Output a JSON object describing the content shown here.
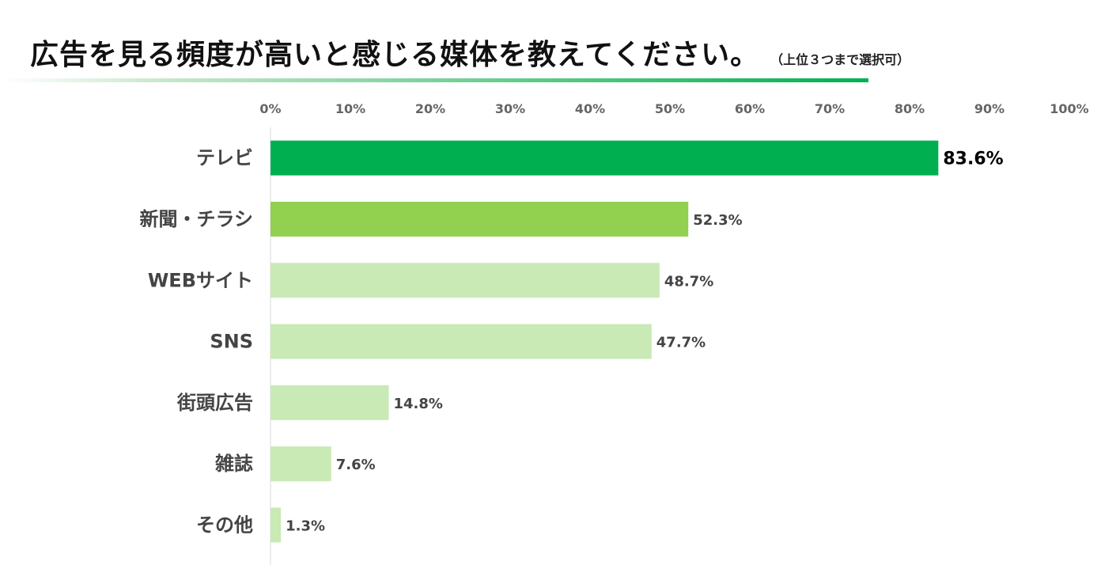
{
  "title": "広告を見る頻度が高いと感じる媒体を教えてください。",
  "subtitle": "（上位３つまで選択可）",
  "chart_data": {
    "type": "bar",
    "orientation": "horizontal",
    "title": "広告を見る頻度が高いと感じる媒体を教えてください。",
    "subtitle": "（上位３つまで選択可）",
    "categories": [
      "テレビ",
      "新聞・チラシ",
      "WEBサイト",
      "SNS",
      "街頭広告",
      "雑誌",
      "その他"
    ],
    "values": [
      83.6,
      52.3,
      48.7,
      47.7,
      14.8,
      7.6,
      1.3
    ],
    "value_labels": [
      "83.6%",
      "52.3%",
      "48.7%",
      "47.7%",
      "14.8%",
      "7.6%",
      "1.3%"
    ],
    "xlim": [
      0,
      100
    ],
    "ticks": [
      "0%",
      "10%",
      "20%",
      "30%",
      "40%",
      "50%",
      "60%",
      "70%",
      "80%",
      "90%",
      "100%"
    ],
    "xlabel": "",
    "ylabel": "",
    "axis_position": "top",
    "colors": [
      "#00b050",
      "#92d050",
      "#c9e9b5",
      "#c9e9b5",
      "#c9e9b5",
      "#c9e9b5",
      "#c9e9b5"
    ],
    "label_color_top": "#000000",
    "label_color": "#444444",
    "title_underline_color": "#00b050"
  }
}
